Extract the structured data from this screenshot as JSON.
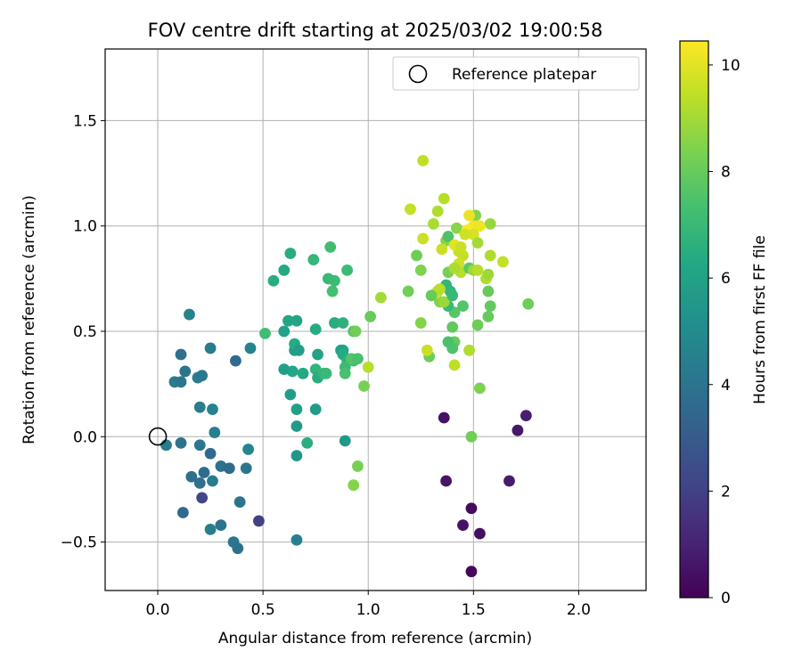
{
  "chart_data": {
    "type": "scatter",
    "title": "FOV centre drift starting at 2025/03/02 19:00:58",
    "xlabel": "Angular distance from reference (arcmin)",
    "ylabel": "Rotation from reference (arcmin)",
    "xlim": [
      -0.25,
      2.32
    ],
    "ylim": [
      -0.73,
      1.84
    ],
    "xticks": [
      0.0,
      0.5,
      1.0,
      1.5,
      2.0
    ],
    "xtick_labels": [
      "0.0",
      "0.5",
      "1.0",
      "1.5",
      "2.0"
    ],
    "yticks": [
      -0.5,
      0.0,
      0.5,
      1.0,
      1.5
    ],
    "ytick_labels": [
      "−0.5",
      "0.0",
      "0.5",
      "1.0",
      "1.5"
    ],
    "grid": true,
    "legend": {
      "placement": "top-right",
      "entries": [
        "Reference platepar"
      ]
    },
    "reference_point": {
      "label": "Reference platepar",
      "x": 0.0,
      "y": 0.0,
      "marker": "open-circle"
    },
    "colorbar": {
      "label": "Hours from first FF file",
      "colormap": "viridis",
      "min": 0,
      "max": 10.45,
      "ticks": [
        0,
        2,
        4,
        6,
        8,
        10
      ],
      "tick_labels": [
        "0",
        "2",
        "4",
        "6",
        "8",
        "10"
      ]
    },
    "points": [
      [
        1.49,
        -0.64,
        0.2
      ],
      [
        1.53,
        -0.46,
        0.4
      ],
      [
        1.49,
        -0.34,
        0.3
      ],
      [
        1.45,
        -0.42,
        0.5
      ],
      [
        1.37,
        -0.21,
        0.6
      ],
      [
        1.36,
        0.09,
        0.5
      ],
      [
        1.67,
        -0.21,
        0.8
      ],
      [
        1.71,
        0.03,
        0.7
      ],
      [
        1.75,
        0.1,
        0.9
      ],
      [
        0.48,
        -0.4,
        2.0
      ],
      [
        0.21,
        -0.29,
        2.2
      ],
      [
        0.12,
        -0.36,
        3.6
      ],
      [
        0.16,
        -0.19,
        3.8
      ],
      [
        0.2,
        -0.22,
        3.9
      ],
      [
        0.22,
        -0.17,
        3.7
      ],
      [
        0.25,
        -0.08,
        3.5
      ],
      [
        0.26,
        -0.21,
        4.3
      ],
      [
        0.3,
        -0.14,
        3.9
      ],
      [
        0.34,
        -0.15,
        3.6
      ],
      [
        0.3,
        -0.42,
        4.0
      ],
      [
        0.25,
        -0.44,
        4.4
      ],
      [
        0.36,
        -0.5,
        4.1
      ],
      [
        0.38,
        -0.53,
        3.9
      ],
      [
        0.39,
        -0.31,
        4.0
      ],
      [
        0.42,
        -0.15,
        4.1
      ],
      [
        0.43,
        -0.06,
        4.7
      ],
      [
        0.04,
        -0.04,
        4.3
      ],
      [
        0.11,
        -0.03,
        4.0
      ],
      [
        0.2,
        -0.04,
        4.2
      ],
      [
        0.27,
        0.02,
        4.5
      ],
      [
        0.26,
        0.13,
        4.6
      ],
      [
        0.2,
        0.14,
        4.4
      ],
      [
        0.08,
        0.26,
        4.3
      ],
      [
        0.11,
        0.26,
        4.1
      ],
      [
        0.13,
        0.31,
        4.0
      ],
      [
        0.19,
        0.28,
        4.4
      ],
      [
        0.21,
        0.29,
        4.2
      ],
      [
        0.11,
        0.39,
        3.8
      ],
      [
        0.25,
        0.42,
        4.3
      ],
      [
        0.37,
        0.36,
        3.6
      ],
      [
        0.44,
        0.42,
        4.6
      ],
      [
        0.15,
        0.58,
        4.6
      ],
      [
        0.66,
        -0.49,
        4.5
      ],
      [
        0.66,
        -0.09,
        5.5
      ],
      [
        0.66,
        0.05,
        5.7
      ],
      [
        0.66,
        0.13,
        5.9
      ],
      [
        0.75,
        0.13,
        5.7
      ],
      [
        0.71,
        -0.03,
        6.5
      ],
      [
        0.89,
        -0.02,
        5.6
      ],
      [
        0.63,
        0.2,
        5.8
      ],
      [
        0.64,
        0.31,
        6.2
      ],
      [
        0.6,
        0.32,
        5.9
      ],
      [
        0.69,
        0.3,
        6.3
      ],
      [
        0.65,
        0.41,
        5.9
      ],
      [
        0.65,
        0.44,
        6.4
      ],
      [
        0.67,
        0.41,
        5.8
      ],
      [
        0.75,
        0.32,
        6.8
      ],
      [
        0.76,
        0.28,
        6.5
      ],
      [
        0.79,
        0.3,
        6.9
      ],
      [
        0.76,
        0.39,
        6.0
      ],
      [
        0.8,
        0.3,
        7.0
      ],
      [
        0.87,
        0.41,
        6.1
      ],
      [
        0.88,
        0.41,
        6.0
      ],
      [
        0.88,
        0.39,
        6.4
      ],
      [
        0.9,
        0.36,
        6.7
      ],
      [
        0.93,
        0.36,
        7.2
      ],
      [
        0.89,
        0.33,
        7.1
      ],
      [
        0.89,
        0.3,
        7.4
      ],
      [
        0.93,
        0.5,
        7.5
      ],
      [
        0.94,
        0.5,
        8.2
      ],
      [
        0.92,
        0.37,
        7.6
      ],
      [
        0.95,
        0.37,
        7.4
      ],
      [
        0.98,
        0.24,
        8.3
      ],
      [
        0.95,
        -0.14,
        8.3
      ],
      [
        0.93,
        -0.23,
        8.5
      ],
      [
        0.6,
        0.5,
        6.0
      ],
      [
        0.62,
        0.55,
        6.2
      ],
      [
        0.66,
        0.55,
        6.1
      ],
      [
        0.75,
        0.51,
        6.4
      ],
      [
        0.84,
        0.54,
        6.5
      ],
      [
        0.88,
        0.54,
        6.7
      ],
      [
        0.81,
        0.75,
        7.0
      ],
      [
        0.84,
        0.74,
        7.1
      ],
      [
        0.83,
        0.69,
        7.3
      ],
      [
        0.82,
        0.9,
        7.2
      ],
      [
        0.74,
        0.84,
        6.9
      ],
      [
        0.63,
        0.87,
        6.4
      ],
      [
        0.6,
        0.79,
        6.3
      ],
      [
        0.55,
        0.74,
        6.5
      ],
      [
        0.51,
        0.49,
        7.2
      ],
      [
        0.9,
        0.79,
        7.1
      ],
      [
        1.01,
        0.57,
        8.0
      ],
      [
        1.0,
        0.33,
        9.3
      ],
      [
        1.06,
        0.66,
        9.0
      ],
      [
        1.49,
        0.0,
        8.2
      ],
      [
        1.53,
        0.23,
        8.4
      ],
      [
        1.57,
        0.57,
        8.0
      ],
      [
        1.58,
        0.62,
        7.9
      ],
      [
        1.57,
        0.69,
        8.0
      ],
      [
        1.52,
        0.53,
        8.1
      ],
      [
        1.48,
        0.41,
        9.2
      ],
      [
        1.41,
        0.34,
        9.4
      ],
      [
        1.41,
        0.45,
        8.0
      ],
      [
        1.4,
        0.42,
        7.5
      ],
      [
        1.38,
        0.45,
        7.4
      ],
      [
        1.4,
        0.52,
        7.9
      ],
      [
        1.45,
        0.62,
        7.6
      ],
      [
        1.41,
        0.59,
        7.7
      ],
      [
        1.38,
        0.62,
        7.0
      ],
      [
        1.34,
        0.64,
        8.4
      ],
      [
        1.36,
        0.64,
        8.9
      ],
      [
        1.37,
        0.72,
        6.8
      ],
      [
        1.39,
        0.69,
        6.9
      ],
      [
        1.4,
        0.67,
        7.0
      ],
      [
        1.33,
        0.69,
        8.6
      ],
      [
        1.32,
        0.68,
        9.6
      ],
      [
        1.34,
        0.7,
        9.3
      ],
      [
        1.3,
        0.67,
        8.0
      ],
      [
        1.29,
        0.38,
        8.1
      ],
      [
        1.28,
        0.41,
        9.6
      ],
      [
        1.25,
        0.54,
        8.5
      ],
      [
        1.25,
        0.79,
        8.4
      ],
      [
        1.19,
        0.69,
        8.2
      ],
      [
        1.23,
        0.86,
        8.1
      ],
      [
        1.38,
        0.78,
        8.3
      ],
      [
        1.37,
        0.93,
        8.6
      ],
      [
        1.38,
        0.95,
        7.5
      ],
      [
        1.42,
        0.99,
        8.6
      ],
      [
        1.43,
        0.88,
        9.5
      ],
      [
        1.41,
        0.91,
        10.0
      ],
      [
        1.45,
        0.86,
        9.5
      ],
      [
        1.43,
        0.82,
        9.7
      ],
      [
        1.44,
        0.78,
        9.3
      ],
      [
        1.41,
        0.8,
        9.1
      ],
      [
        1.48,
        0.8,
        7.8
      ],
      [
        1.5,
        0.79,
        8.9
      ],
      [
        1.52,
        0.79,
        9.3
      ],
      [
        1.56,
        0.75,
        9.2
      ],
      [
        1.57,
        0.77,
        8.9
      ],
      [
        1.58,
        0.86,
        9.2
      ],
      [
        1.64,
        0.83,
        9.5
      ],
      [
        1.58,
        1.01,
        8.8
      ],
      [
        1.51,
        1.05,
        8.5
      ],
      [
        1.48,
        1.05,
        10.1
      ],
      [
        1.5,
        1.0,
        10.3
      ],
      [
        1.53,
        1.0,
        10.2
      ],
      [
        1.47,
        0.98,
        10.4
      ],
      [
        1.5,
        0.96,
        9.8
      ],
      [
        1.52,
        0.92,
        9.0
      ],
      [
        1.46,
        0.96,
        9.7
      ],
      [
        1.44,
        0.9,
        9.6
      ],
      [
        1.35,
        0.89,
        9.6
      ],
      [
        1.31,
        1.01,
        9.1
      ],
      [
        1.33,
        1.07,
        9.2
      ],
      [
        1.36,
        1.13,
        9.3
      ],
      [
        1.26,
        0.94,
        9.6
      ],
      [
        1.2,
        1.08,
        9.5
      ],
      [
        1.26,
        1.31,
        9.4
      ],
      [
        1.76,
        0.63,
        8.1
      ]
    ]
  }
}
